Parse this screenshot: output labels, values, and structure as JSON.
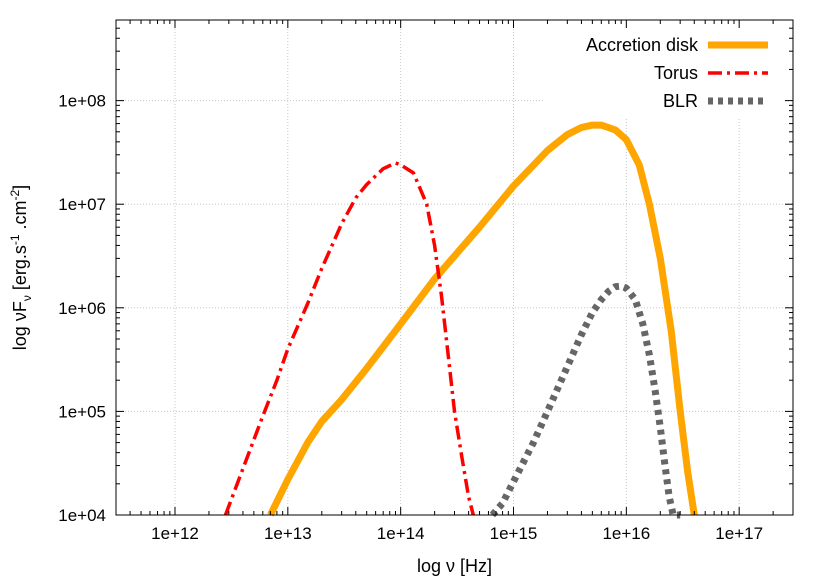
{
  "chart_data": {
    "type": "line",
    "title": "",
    "xlabel": "log ν [Hz]",
    "ylabel": "log νF_ν [erg.s^-1.cm^-2]",
    "ylabel_parts": {
      "main": "log νF",
      "sub": "ν",
      "bracket_open": " [erg.s",
      "sup1": "-1",
      "mid": " .cm",
      "sup2": "-2",
      "bracket_close": "]"
    },
    "x_scale": "log",
    "y_scale": "log",
    "xlim": [
      300000000000.0,
      3e+17
    ],
    "ylim": [
      10000.0,
      600000000.0
    ],
    "x_ticks": [
      1000000000000.0,
      10000000000000.0,
      100000000000000.0,
      1000000000000000.0,
      1e+16,
      1e+17
    ],
    "x_tick_labels": [
      "1e+12",
      "1e+13",
      "1e+14",
      "1e+15",
      "1e+16",
      "1e+17"
    ],
    "y_ticks": [
      10000.0,
      100000.0,
      1000000.0,
      10000000.0,
      100000000.0
    ],
    "y_tick_labels": [
      "1e+04",
      "1e+05",
      "1e+06",
      "1e+07",
      "1e+08"
    ],
    "grid": true,
    "legend_position": "top-right",
    "series": [
      {
        "name": "Accretion disk",
        "color": "#ffa500",
        "style": "solid",
        "x": [
          7000000000000.0,
          10000000000000.0,
          15000000000000.0,
          20000000000000.0,
          30000000000000.0,
          50000000000000.0,
          100000000000000.0,
          200000000000000.0,
          500000000000000.0,
          1000000000000000.0,
          2000000000000000.0,
          3000000000000000.0,
          4000000000000000.0,
          5000000000000000.0,
          6000000000000000.0,
          8000000000000000.0,
          1e+16,
          1.3e+16,
          1.6e+16,
          2e+16,
          2.5e+16,
          3e+16,
          3.5e+16,
          4e+16
        ],
        "y": [
          10000.0,
          22000.0,
          50000.0,
          80000.0,
          130000.0,
          260000.0,
          700000.0,
          1900000.0,
          6000000.0,
          15000000.0,
          33000000.0,
          47000000.0,
          55000000.0,
          58000000.0,
          58000000.0,
          52000000.0,
          42000000.0,
          24000000.0,
          10000000.0,
          3000000.0,
          600000.0,
          100000.0,
          26000.0,
          10000.0
        ]
      },
      {
        "name": "Torus",
        "color": "#ff0000",
        "style": "dash-dot",
        "x": [
          2800000000000.0,
          4000000000000.0,
          6000000000000.0,
          8000000000000.0,
          10000000000000.0,
          15000000000000.0,
          20000000000000.0,
          30000000000000.0,
          40000000000000.0,
          50000000000000.0,
          70000000000000.0,
          90000000000000.0,
          100000000000000.0,
          130000000000000.0,
          170000000000000.0,
          200000000000000.0,
          230000000000000.0,
          260000000000000.0,
          300000000000000.0,
          350000000000000.0,
          400000000000000.0,
          440000000000000.0
        ],
        "y": [
          10000.0,
          28000.0,
          90000.0,
          200000.0,
          400000.0,
          1100000.0,
          2400000.0,
          6500000.0,
          11500000.0,
          15500000.0,
          22000000.0,
          25000000.0,
          24000000.0,
          20000000.0,
          10000000.0,
          4000000.0,
          1300000.0,
          400000.0,
          100000.0,
          35000.0,
          15000.0,
          10000.0
        ]
      },
      {
        "name": "BLR",
        "color": "#666666",
        "style": "dotted",
        "x": [
          650000000000000.0,
          800000000000000.0,
          1000000000000000.0,
          1500000000000000.0,
          2000000000000000.0,
          3000000000000000.0,
          4000000000000000.0,
          5000000000000000.0,
          6000000000000000.0,
          7000000000000000.0,
          8000000000000000.0,
          9000000000000000.0,
          1e+16,
          1.2e+16,
          1.4e+16,
          1.6e+16,
          1.8e+16,
          2e+16,
          2.2e+16,
          2.4e+16,
          2.6e+16,
          2.8e+16,
          3e+16
        ],
        "y": [
          10000.0,
          13000.0,
          21000.0,
          50000.0,
          100000.0,
          270000.0,
          550000.0,
          900000.0,
          1200000.0,
          1450000.0,
          1600000.0,
          1620000.0,
          1550000.0,
          1200000.0,
          700000.0,
          350000.0,
          160000.0,
          70000.0,
          30000.0,
          15000.0,
          10000.0,
          10000.0,
          10000.0
        ]
      }
    ]
  }
}
